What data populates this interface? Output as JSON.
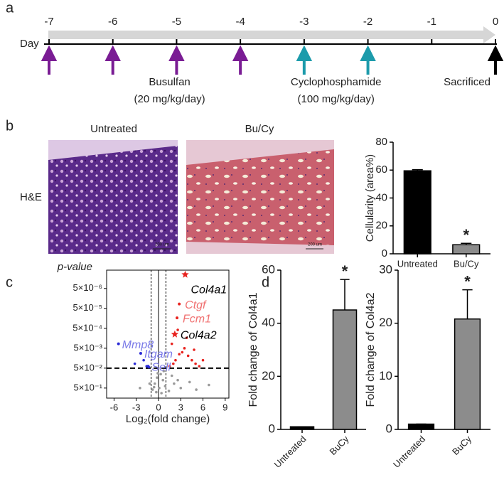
{
  "panel_labels": [
    "a",
    "b",
    "c",
    "d"
  ],
  "timeline": {
    "axis_label": "Day",
    "ticks": [
      -7,
      -6,
      -5,
      -4,
      -3,
      -2,
      -1,
      0
    ],
    "events": [
      {
        "label": "Busulfan",
        "dose": "(20 mg/kg/day)",
        "days": [
          -7,
          -6,
          -5,
          -4
        ],
        "color": "#7a1c94"
      },
      {
        "label": "Cyclophosphamide",
        "dose": "(100 mg/kg/day)",
        "days": [
          -3,
          -2
        ],
        "color": "#1c9bab"
      },
      {
        "label": "Sacrificed",
        "days": [
          0
        ],
        "color": "#000000"
      }
    ]
  },
  "histology": {
    "row_label": "H&E",
    "images": [
      {
        "title": "Untreated",
        "scale_bar": "200 um"
      },
      {
        "title": "Bu/Cy",
        "scale_bar": "200 um"
      }
    ]
  },
  "chart_data": [
    {
      "type": "bar",
      "y_label": "Cellularity  (area%)",
      "categories": [
        "Untreated",
        "Bu/Cy"
      ],
      "values": [
        59.5,
        6.5
      ],
      "errors": [
        0.8,
        1.0
      ],
      "colors": [
        "#000000",
        "#8c8c8c"
      ],
      "significance": [
        null,
        "*"
      ],
      "ylim": [
        0,
        80
      ],
      "yticks": [
        0,
        20,
        40,
        60,
        80
      ]
    },
    {
      "type": "volcano",
      "x_label": "Log₂(fold change)",
      "y_label": "p-value",
      "xlim": [
        -7,
        9.5
      ],
      "xticks": [
        -6,
        -3,
        0,
        3,
        6,
        9
      ],
      "ylim": [
        1.6,
        6e-07
      ],
      "log_y": true,
      "yticks": [
        {
          "value": 5e-06,
          "label": "5×10⁻⁶"
        },
        {
          "value": 5e-05,
          "label": "5×10⁻⁵"
        },
        {
          "value": 0.0005,
          "label": "5×10⁻⁴"
        },
        {
          "value": 0.005,
          "label": "5×10⁻³"
        },
        {
          "value": 0.05,
          "label": "5×10⁻²"
        },
        {
          "value": 0.5,
          "label": "5×10⁻¹"
        }
      ],
      "fc_threshold": [
        -1,
        1
      ],
      "p_threshold": 0.05,
      "series": [
        {
          "color": "#9a9a9a",
          "x": [
            -0.8,
            -0.5,
            -0.3,
            0.1,
            0.4,
            0.6,
            0.9,
            -0.2,
            0.3,
            -0.6,
            1.4,
            2.1,
            3.0,
            4.2,
            5.1,
            6.8,
            -1.2,
            -2.5,
            0.7,
            -0.1,
            1.8,
            2.6
          ],
          "y": [
            0.6,
            0.3,
            0.8,
            0.5,
            0.9,
            0.2,
            0.4,
            0.15,
            0.1,
            0.45,
            0.7,
            0.3,
            0.5,
            0.25,
            0.6,
            0.35,
            0.3,
            0.5,
            0.07,
            0.09,
            0.12,
            0.2
          ]
        },
        {
          "color": "#e8231f",
          "x": [
            1.5,
            2.0,
            2.3,
            2.8,
            3.2,
            3.5,
            4.0,
            4.5,
            5.0,
            5.5,
            6.0,
            1.8,
            2.6,
            3.8,
            4.8
          ],
          "y": [
            0.04,
            0.03,
            0.02,
            0.01,
            0.008,
            0.005,
            0.012,
            0.02,
            0.03,
            0.04,
            0.02,
            0.003,
            0.0006,
            0.0015,
            0.006
          ]
        },
        {
          "color": "#2a2ad6",
          "x": [
            -1.6,
            -2.0,
            -3.2,
            -1.3
          ],
          "y": [
            0.04,
            0.02,
            0.03,
            0.045
          ]
        }
      ],
      "annotations": [
        {
          "label": "Col4a1",
          "x": 3.6,
          "y": 1e-06,
          "marker": "star",
          "color": "#e8231f",
          "label_color": "#000000"
        },
        {
          "label": "Ctgf",
          "x": 2.8,
          "y": 3e-05,
          "marker": "dot",
          "color": "#e8231f",
          "label_color": "#f07070"
        },
        {
          "label": "Fcm1",
          "x": 2.5,
          "y": 0.00015,
          "marker": "dot",
          "color": "#e8231f",
          "label_color": "#f07070"
        },
        {
          "label": "Col4a2",
          "x": 2.2,
          "y": 0.001,
          "marker": "star",
          "color": "#e8231f",
          "label_color": "#000000"
        },
        {
          "label": "Mmp8",
          "x": -5.4,
          "y": 0.003,
          "marker": "dot",
          "color": "#2a2ad6",
          "label_color": "#7a7ae8"
        },
        {
          "label": "Itgam",
          "x": -2.4,
          "y": 0.009,
          "marker": "dot",
          "color": "#2a2ad6",
          "label_color": "#7a7ae8"
        },
        {
          "label": "Sell",
          "x": -1.4,
          "y": 0.04,
          "marker": "dot",
          "color": "#2a2ad6",
          "label_color": "#7a7ae8"
        }
      ]
    },
    {
      "type": "bar",
      "y_label": "Fold change of Col4a1",
      "categories": [
        "Untreated",
        "BuCy"
      ],
      "values": [
        1,
        45
      ],
      "errors": [
        0,
        11.5
      ],
      "colors": [
        "#000000",
        "#8c8c8c"
      ],
      "significance": [
        null,
        "*"
      ],
      "ylim": [
        0,
        60
      ],
      "yticks": [
        0,
        20,
        40,
        60
      ]
    },
    {
      "type": "bar",
      "y_label": "Fold change of  Col4a2",
      "categories": [
        "Untreated",
        "BuCy"
      ],
      "values": [
        1,
        20.8
      ],
      "errors": [
        0,
        5.5
      ],
      "colors": [
        "#000000",
        "#8c8c8c"
      ],
      "significance": [
        null,
        "*"
      ],
      "ylim": [
        0,
        30
      ],
      "yticks": [
        0,
        10,
        20,
        30
      ]
    }
  ]
}
